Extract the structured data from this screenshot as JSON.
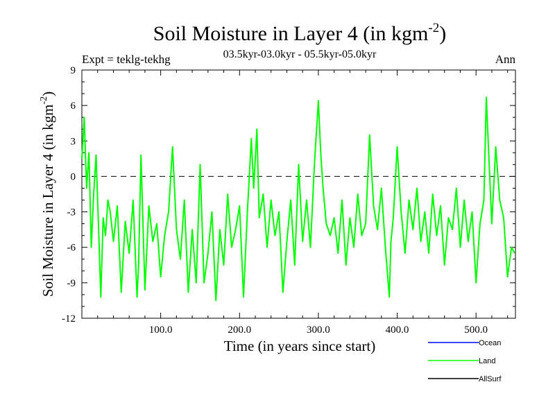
{
  "chart_data": {
    "type": "line",
    "title": "Soil Moisture in Layer 4 (in kgm",
    "title_sup": "-2",
    "title_close": ")",
    "subtitle": "03.5kyr-03.0kyr - 05.5kyr-05.0kyr",
    "expt_label": "Expt = teklg-tekhg",
    "season_label": "Ann",
    "xlabel": "Time (in years since start)",
    "ylabel": "Soil Moisture in Layer 4 (in kgm",
    "ylabel_sup": "-2",
    "ylabel_close": ")",
    "xlim": [
      0,
      550
    ],
    "ylim": [
      -12,
      9
    ],
    "xticks": [
      100,
      200,
      300,
      400,
      500
    ],
    "xtick_labels": [
      "100.0",
      "200.0",
      "300.0",
      "400.0",
      "500.0"
    ],
    "yticks": [
      -12,
      -9,
      -6,
      -3,
      0,
      3,
      6,
      9
    ],
    "ytick_labels": [
      "-12",
      "-9",
      "-6",
      "-3",
      "0",
      "3",
      "6",
      "9"
    ],
    "zero_line": true,
    "legend_position": "bottom-right",
    "colors": {
      "ocean": "#0000ff",
      "land": "#00ff00",
      "allsurf": "#000000"
    },
    "series": [
      {
        "name": "Ocean",
        "color": "#0000ff",
        "values": []
      },
      {
        "name": "Land",
        "color": "#00ff00",
        "x": [
          0,
          3,
          6,
          9,
          12,
          15,
          18,
          21,
          24,
          27,
          30,
          33,
          36,
          40,
          45,
          50,
          55,
          60,
          65,
          70,
          72,
          75,
          80,
          85,
          90,
          95,
          100,
          105,
          110,
          115,
          120,
          125,
          130,
          135,
          140,
          145,
          150,
          155,
          160,
          165,
          170,
          175,
          180,
          185,
          190,
          195,
          200,
          205,
          210,
          215,
          218,
          222,
          225,
          230,
          235,
          240,
          245,
          250,
          255,
          260,
          265,
          270,
          275,
          280,
          285,
          290,
          295,
          300,
          303,
          306,
          310,
          315,
          320,
          325,
          330,
          335,
          340,
          345,
          350,
          355,
          360,
          365,
          370,
          375,
          380,
          385,
          390,
          392,
          395,
          400,
          405,
          410,
          415,
          420,
          425,
          430,
          435,
          440,
          445,
          450,
          455,
          460,
          465,
          470,
          475,
          480,
          485,
          490,
          495,
          500,
          505,
          510,
          513,
          516,
          520,
          525,
          530,
          535,
          540,
          545,
          549
        ],
        "values": [
          1.5,
          5.0,
          -1.0,
          2.0,
          -6.0,
          -1.5,
          1.8,
          -4.0,
          -10.2,
          -3.5,
          -5.0,
          -2.0,
          -3.0,
          -5.5,
          -2.5,
          -9.8,
          -3.8,
          -6.5,
          -2.0,
          -10.2,
          -7.5,
          1.8,
          -9.6,
          -2.5,
          -5.5,
          -4.0,
          -8.5,
          -5.0,
          -3.0,
          2.5,
          -4.5,
          -7.0,
          -2.0,
          -9.8,
          -4.5,
          -9.0,
          1.0,
          -9.0,
          -6.5,
          -3.0,
          -10.5,
          -4.5,
          -7.5,
          -1.5,
          -6.0,
          -4.5,
          -2.5,
          -10.2,
          -3.0,
          3.2,
          -1.0,
          4.0,
          -3.5,
          -1.5,
          -6.0,
          -2.0,
          -5.0,
          -3.0,
          -9.8,
          -5.5,
          -2.0,
          -7.5,
          1.0,
          -5.5,
          -2.0,
          -6.0,
          1.0,
          6.4,
          2.0,
          -1.0,
          -4.0,
          -5.0,
          -3.5,
          -6.5,
          -2.0,
          -7.5,
          -3.5,
          -6.0,
          -1.5,
          -5.0,
          -4.0,
          3.5,
          -2.5,
          -4.5,
          -1.0,
          -6.0,
          -10.2,
          -5.5,
          -3.5,
          2.5,
          -3.0,
          -6.5,
          -2.0,
          -4.5,
          -1.0,
          -5.5,
          -3.0,
          -6.5,
          -1.5,
          -5.0,
          -2.5,
          -7.5,
          -3.5,
          -4.5,
          -1.0,
          -6.0,
          -2.0,
          -5.5,
          -3.0,
          -9.0,
          -4.0,
          -2.0,
          6.7,
          2.0,
          -4.0,
          2.5,
          -2.0,
          -3.5,
          -8.5,
          -6.0,
          -6.5
        ]
      },
      {
        "name": "AllSurf",
        "color": "#000000",
        "values": []
      }
    ]
  }
}
